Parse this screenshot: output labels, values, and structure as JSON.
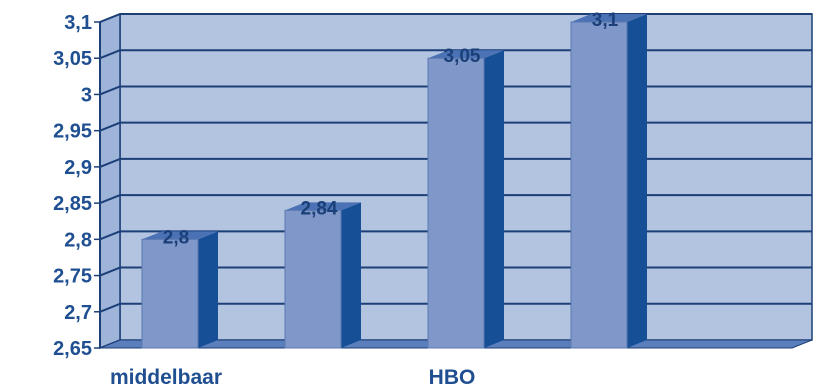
{
  "chart_data": {
    "type": "bar",
    "categories": [
      "middelbaar",
      "",
      "HBO",
      ""
    ],
    "values": [
      2.8,
      2.84,
      3.05,
      3.1
    ],
    "data_labels": [
      "2,8",
      "2,84",
      "3,05",
      "3,1"
    ],
    "title": "",
    "xlabel": "",
    "ylabel": "",
    "ylim": [
      2.65,
      3.1
    ],
    "y_ticks": [
      {
        "value": 2.65,
        "label": "2,65"
      },
      {
        "value": 2.7,
        "label": "2,7"
      },
      {
        "value": 2.75,
        "label": "2,75"
      },
      {
        "value": 2.8,
        "label": "2,8"
      },
      {
        "value": 2.85,
        "label": "2,85"
      },
      {
        "value": 2.9,
        "label": "2,9"
      },
      {
        "value": 2.95,
        "label": "2,95"
      },
      {
        "value": 3.0,
        "label": "3"
      },
      {
        "value": 3.05,
        "label": "3,05"
      },
      {
        "value": 3.1,
        "label": "3,1"
      }
    ],
    "grid": true,
    "three_d": true,
    "colors": {
      "bar_front": "#7f98c9",
      "bar_side": "#174f96",
      "bar_top": "#4a72b4",
      "back_wall": "#b3c4e1",
      "side_wall": "#9fb4d9",
      "floor": "#5b7fbd",
      "grid": "#1c3f78",
      "text": "#1f4f91"
    }
  }
}
